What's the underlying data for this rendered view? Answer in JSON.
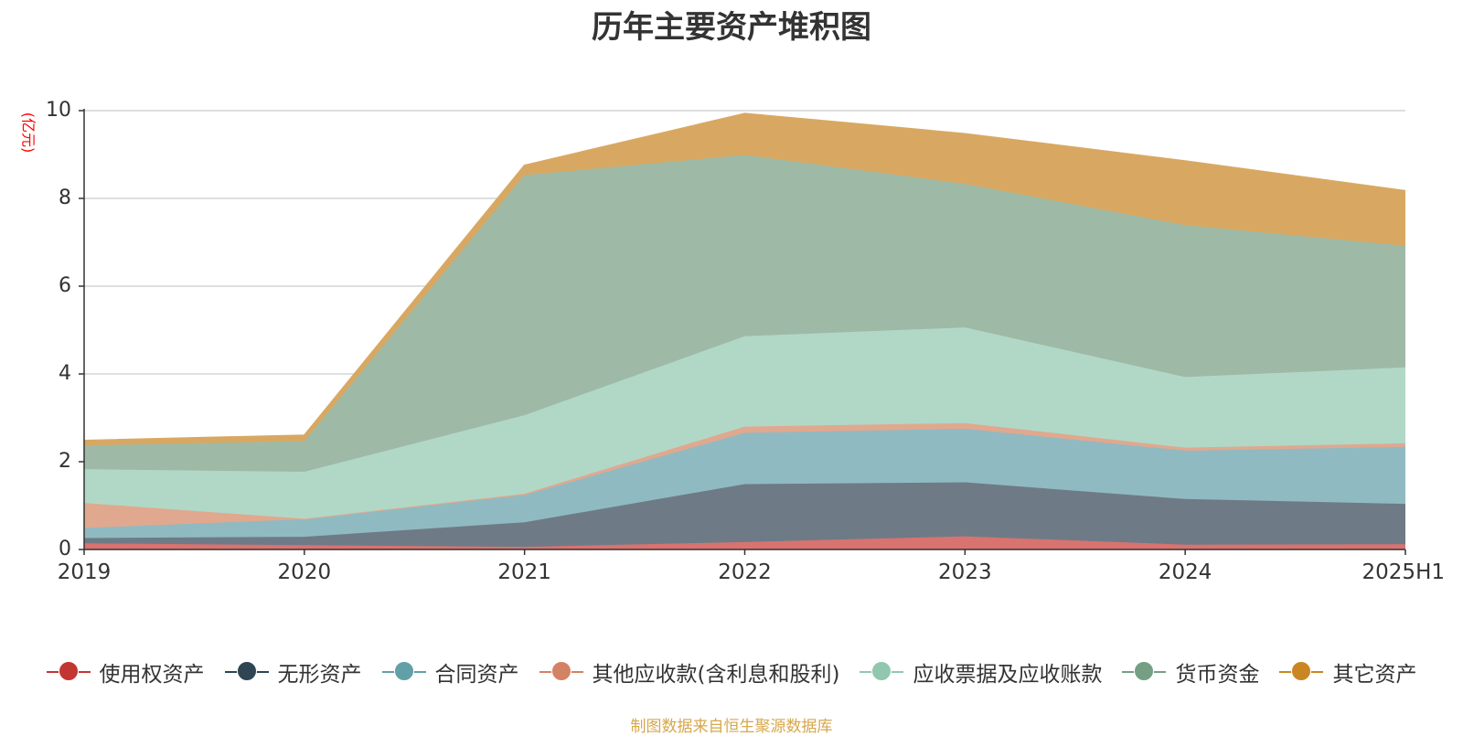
{
  "page": {
    "title": "历年主要资产堆积图",
    "source_note": "制图数据来自恒生聚源数据库"
  },
  "chart_data": {
    "type": "area",
    "stacked": true,
    "title": "历年主要资产堆积图",
    "xlabel": "",
    "ylabel": "(亿元)",
    "categories": [
      "2019",
      "2020",
      "2021",
      "2022",
      "2023",
      "2024",
      "2025H1"
    ],
    "ylim": [
      0,
      10
    ],
    "yticks": [
      0,
      2,
      4,
      6,
      8,
      10
    ],
    "grid": true,
    "legend_position": "bottom",
    "series": [
      {
        "name": "使用权资产",
        "line_color": "#C23531",
        "fill_color": "#D87370",
        "values": [
          0.14,
          0.1,
          0.06,
          0.17,
          0.3,
          0.11,
          0.12
        ]
      },
      {
        "name": "无形资产",
        "line_color": "#2F4554",
        "fill_color": "#6E7B86",
        "values": [
          0.12,
          0.19,
          0.56,
          1.32,
          1.23,
          1.04,
          0.92
        ]
      },
      {
        "name": "合同资产",
        "line_color": "#61A0A8",
        "fill_color": "#90BAC1",
        "values": [
          0.23,
          0.4,
          0.62,
          1.17,
          1.22,
          1.1,
          1.3
        ]
      },
      {
        "name": "其他应收款(含利息和股利)",
        "line_color": "#D48265",
        "fill_color": "#E0A88F",
        "values": [
          0.57,
          0.01,
          0.03,
          0.14,
          0.13,
          0.07,
          0.08
        ]
      },
      {
        "name": "应收票据及应收账款",
        "line_color": "#91C7AE",
        "fill_color": "#B1D8C6",
        "values": [
          0.77,
          1.07,
          1.79,
          2.06,
          2.18,
          1.61,
          1.73
        ]
      },
      {
        "name": "货币资金",
        "line_color": "#749F83",
        "fill_color": "#9EBAA6",
        "values": [
          0.54,
          0.7,
          5.47,
          4.13,
          3.27,
          3.46,
          2.77
        ]
      },
      {
        "name": "其它资产",
        "line_color": "#CA8622",
        "fill_color": "#D8A862",
        "values": [
          0.11,
          0.13,
          0.22,
          0.94,
          1.14,
          1.46,
          1.25
        ]
      }
    ]
  }
}
